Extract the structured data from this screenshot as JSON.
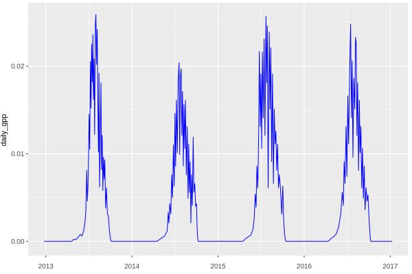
{
  "figure": {
    "kind": "ggplot2-style line chart"
  },
  "style": {
    "outer_bg": "#FFFFFF",
    "panel_bg": "#EBEBEB",
    "grid_color": "#FFFFFF",
    "line_color": "#0000FF",
    "tick_label_color": "#4D4D4D",
    "tick_mark_color": "#333333",
    "axis_title_color": "#000000"
  },
  "chart_data": {
    "type": "line",
    "title": "",
    "xlabel": "",
    "ylabel": "daily_gpp",
    "grid": true,
    "legend": "none",
    "x_domain": [
      2012.795,
      2017.205
    ],
    "y_domain": [
      -0.00162,
      0.02724
    ],
    "x_ticks": {
      "values": [
        2013,
        2014,
        2015,
        2016,
        2017
      ],
      "labels": [
        "2013",
        "2014",
        "2015",
        "2016",
        "2017"
      ]
    },
    "x_minor_ticks": [
      2013.5,
      2014.5,
      2015.5,
      2016.5
    ],
    "y_ticks": {
      "values": [
        0.0,
        0.01,
        0.02
      ],
      "labels": [
        "0.00",
        "0.01",
        "0.02"
      ]
    },
    "y_minor_ticks": [
      0.005,
      0.015,
      0.025
    ],
    "series": [
      {
        "name": "daily_gpp",
        "color": "#0000FF",
        "points": [
          [
            2012.98,
            0
          ],
          [
            2013.3,
            0
          ],
          [
            2013.32,
            0.0002
          ],
          [
            2013.35,
            0.0002
          ],
          [
            2013.38,
            0.0005
          ],
          [
            2013.4,
            0.0008
          ],
          [
            2013.42,
            0.0006
          ],
          [
            2013.44,
            0.0012
          ],
          [
            2013.455,
            0.0022
          ],
          [
            2013.465,
            0.0035
          ],
          [
            2013.475,
            0.0081
          ],
          [
            2013.483,
            0.0046
          ],
          [
            2013.49,
            0.0062
          ],
          [
            2013.497,
            0.01
          ],
          [
            2013.503,
            0.0145
          ],
          [
            2013.51,
            0.0105
          ],
          [
            2013.518,
            0.0205
          ],
          [
            2013.525,
            0.0152
          ],
          [
            2013.532,
            0.0225
          ],
          [
            2013.54,
            0.0182
          ],
          [
            2013.547,
            0.0236
          ],
          [
            2013.553,
            0.0162
          ],
          [
            2013.56,
            0.0208
          ],
          [
            2013.567,
            0.0122
          ],
          [
            2013.575,
            0.0247
          ],
          [
            2013.582,
            0.0259
          ],
          [
            2013.59,
            0.0202
          ],
          [
            2013.597,
            0.0242
          ],
          [
            2013.605,
            0.0152
          ],
          [
            2013.612,
            0.0102
          ],
          [
            2013.618,
            0.0192
          ],
          [
            2013.625,
            0.0062
          ],
          [
            2013.633,
            0.0122
          ],
          [
            2013.64,
            0.0181
          ],
          [
            2013.648,
            0.0082
          ],
          [
            2013.655,
            0.0121
          ],
          [
            2013.662,
            0.0058
          ],
          [
            2013.67,
            0.0096
          ],
          [
            2013.678,
            0.0071
          ],
          [
            2013.685,
            0.0093
          ],
          [
            2013.695,
            0.0038
          ],
          [
            2013.705,
            0.0061
          ],
          [
            2013.715,
            0.0031
          ],
          [
            2013.727,
            0.0029
          ],
          [
            2013.738,
            0.0013
          ],
          [
            2013.748,
            0.0005
          ],
          [
            2013.755,
            0.0001
          ],
          [
            2013.76,
            0
          ],
          [
            2014.29,
            0
          ],
          [
            2014.32,
            0.0002
          ],
          [
            2014.35,
            0.0004
          ],
          [
            2014.38,
            0.0006
          ],
          [
            2014.41,
            0.0012
          ],
          [
            2014.422,
            0.0033
          ],
          [
            2014.43,
            0.0021
          ],
          [
            2014.44,
            0.0043
          ],
          [
            2014.452,
            0.0031
          ],
          [
            2014.462,
            0.0076
          ],
          [
            2014.472,
            0.005
          ],
          [
            2014.482,
            0.011
          ],
          [
            2014.492,
            0.0063
          ],
          [
            2014.5,
            0.0146
          ],
          [
            2014.508,
            0.0086
          ],
          [
            2014.517,
            0.0161
          ],
          [
            2014.527,
            0.0101
          ],
          [
            2014.537,
            0.0182
          ],
          [
            2014.548,
            0.0204
          ],
          [
            2014.555,
            0.0099
          ],
          [
            2014.563,
            0.0186
          ],
          [
            2014.572,
            0.0197
          ],
          [
            2014.58,
            0.0121
          ],
          [
            2014.588,
            0.0171
          ],
          [
            2014.597,
            0.0086
          ],
          [
            2014.605,
            0.0156
          ],
          [
            2014.615,
            0.0106
          ],
          [
            2014.622,
            0.0161
          ],
          [
            2014.632,
            0.0076
          ],
          [
            2014.642,
            0.0131
          ],
          [
            2014.652,
            0.0049
          ],
          [
            2014.66,
            0.0111
          ],
          [
            2014.668,
            0.0056
          ],
          [
            2014.677,
            0.0091
          ],
          [
            2014.685,
            0.0021
          ],
          [
            2014.693,
            0.0076
          ],
          [
            2014.702,
            0.0041
          ],
          [
            2014.712,
            0.0119
          ],
          [
            2014.72,
            0.0056
          ],
          [
            2014.73,
            0.0066
          ],
          [
            2014.74,
            0.004
          ],
          [
            2014.75,
            0.0043
          ],
          [
            2014.757,
            0.0016
          ],
          [
            2014.763,
            0.0005
          ],
          [
            2014.768,
            0
          ],
          [
            2015.29,
            0
          ],
          [
            2015.32,
            0.0003
          ],
          [
            2015.35,
            0.0005
          ],
          [
            2015.38,
            0.0007
          ],
          [
            2015.405,
            0.0013
          ],
          [
            2015.42,
            0.0026
          ],
          [
            2015.432,
            0.0054
          ],
          [
            2015.442,
            0.0039
          ],
          [
            2015.452,
            0.0086
          ],
          [
            2015.462,
            0.0061
          ],
          [
            2015.472,
            0.0121
          ],
          [
            2015.48,
            0.0217
          ],
          [
            2015.49,
            0.0131
          ],
          [
            2015.498,
            0.0191
          ],
          [
            2015.507,
            0.0106
          ],
          [
            2015.515,
            0.0216
          ],
          [
            2015.525,
            0.0141
          ],
          [
            2015.535,
            0.0231
          ],
          [
            2015.545,
            0.0121
          ],
          [
            2015.557,
            0.0257
          ],
          [
            2015.565,
            0.0181
          ],
          [
            2015.573,
            0.0246
          ],
          [
            2015.582,
            0.0061
          ],
          [
            2015.595,
            0.0239
          ],
          [
            2015.605,
            0.0151
          ],
          [
            2015.613,
            0.0221
          ],
          [
            2015.623,
            0.0091
          ],
          [
            2015.633,
            0.0191
          ],
          [
            2015.643,
            0.0066
          ],
          [
            2015.653,
            0.0151
          ],
          [
            2015.663,
            0.0111
          ],
          [
            2015.672,
            0.0126
          ],
          [
            2015.682,
            0.0081
          ],
          [
            2015.692,
            0.0111
          ],
          [
            2015.702,
            0.0061
          ],
          [
            2015.712,
            0.0076
          ],
          [
            2015.725,
            0.0061
          ],
          [
            2015.74,
            0.0031
          ],
          [
            2015.752,
            0.0063
          ],
          [
            2015.762,
            0.0026
          ],
          [
            2015.772,
            0.0009
          ],
          [
            2015.78,
            0.0003
          ],
          [
            2015.787,
            0
          ],
          [
            2016.28,
            0
          ],
          [
            2016.31,
            0.0003
          ],
          [
            2016.34,
            0.0005
          ],
          [
            2016.37,
            0.0008
          ],
          [
            2016.4,
            0.0016
          ],
          [
            2016.425,
            0.0031
          ],
          [
            2016.443,
            0.0056
          ],
          [
            2016.455,
            0.0041
          ],
          [
            2016.465,
            0.0091
          ],
          [
            2016.475,
            0.0066
          ],
          [
            2016.487,
            0.0131
          ],
          [
            2016.497,
            0.0074
          ],
          [
            2016.507,
            0.0166
          ],
          [
            2016.517,
            0.0111
          ],
          [
            2016.528,
            0.0191
          ],
          [
            2016.54,
            0.0248
          ],
          [
            2016.55,
            0.0141
          ],
          [
            2016.558,
            0.0206
          ],
          [
            2016.567,
            0.0096
          ],
          [
            2016.577,
            0.0186
          ],
          [
            2016.588,
            0.0151
          ],
          [
            2016.597,
            0.0233
          ],
          [
            2016.605,
            0.0226
          ],
          [
            2016.613,
            0.0121
          ],
          [
            2016.622,
            0.0181
          ],
          [
            2016.632,
            0.0081
          ],
          [
            2016.642,
            0.0161
          ],
          [
            2016.65,
            0.0101
          ],
          [
            2016.66,
            0.0131
          ],
          [
            2016.668,
            0.0061
          ],
          [
            2016.678,
            0.0106
          ],
          [
            2016.688,
            0.0049
          ],
          [
            2016.698,
            0.0086
          ],
          [
            2016.708,
            0.0036
          ],
          [
            2016.72,
            0.0061
          ],
          [
            2016.732,
            0.0046
          ],
          [
            2016.742,
            0.0053
          ],
          [
            2016.752,
            0.0029
          ],
          [
            2016.762,
            0.0013
          ],
          [
            2016.768,
            0.0004
          ],
          [
            2016.773,
            0
          ],
          [
            2016.9,
            0
          ],
          [
            2017.02,
            0
          ]
        ]
      }
    ]
  }
}
